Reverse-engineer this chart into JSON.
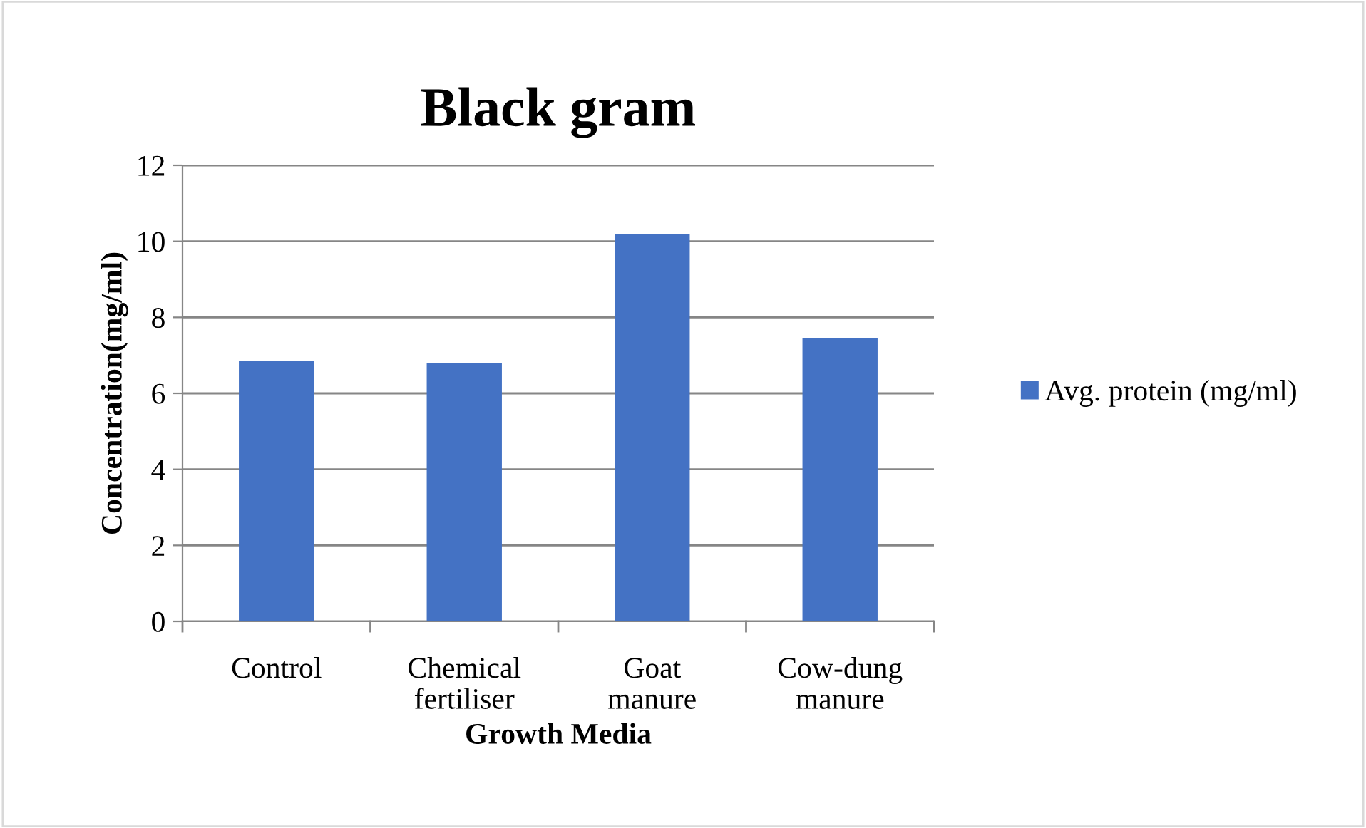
{
  "chart_data": {
    "type": "bar",
    "title": "Black gram",
    "xlabel": "Growth Media",
    "ylabel": "Concentration(mg/ml)",
    "categories": [
      "Control",
      "Chemical\nfertiliser",
      "Goat\nmanure",
      "Cow-dung\nmanure"
    ],
    "series": [
      {
        "name": "Avg. protein (mg/ml)",
        "color": "#4472c4",
        "values": [
          6.86,
          6.79,
          10.19,
          7.45
        ]
      }
    ],
    "ylim": [
      0,
      12
    ],
    "yticks": [
      0,
      2,
      4,
      6,
      8,
      10,
      12
    ],
    "grid": "y",
    "legend": "right"
  }
}
